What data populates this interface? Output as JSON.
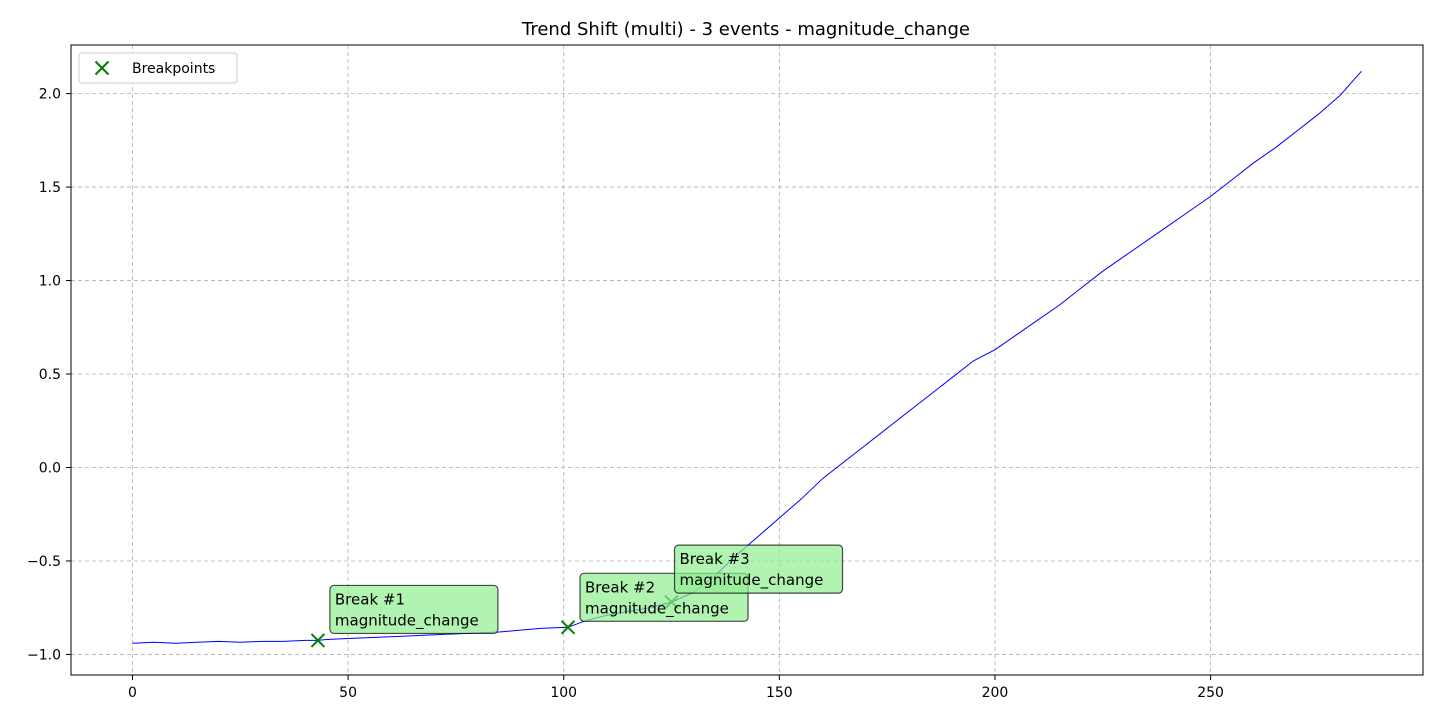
{
  "chart_data": {
    "type": "line",
    "title": "Trend Shift (multi) - 3 events - magnitude_change",
    "xlabel": "",
    "ylabel": "",
    "xlim": [
      -14.25,
      299.25
    ],
    "ylim": [
      -1.11,
      2.26
    ],
    "xticks": [
      0,
      50,
      100,
      150,
      200,
      250
    ],
    "yticks": [
      -1.0,
      -0.5,
      0.0,
      0.5,
      1.0,
      1.5,
      2.0
    ],
    "xtick_labels": [
      "0",
      "50",
      "100",
      "150",
      "200",
      "250"
    ],
    "ytick_labels": [
      "−1.0",
      "−0.5",
      "0.0",
      "0.5",
      "1.0",
      "1.5",
      "2.0"
    ],
    "grid": true,
    "legend_position": "upper-left",
    "colors": {
      "line": "#0000ff",
      "marker": "#008000",
      "annotation_fill": "#90ee90"
    },
    "series": [
      {
        "name": "",
        "x": [
          0,
          5,
          10,
          15,
          20,
          25,
          30,
          35,
          40,
          43,
          45,
          50,
          55,
          60,
          65,
          70,
          75,
          80,
          85,
          90,
          95,
          101,
          105,
          110,
          115,
          120,
          125,
          130,
          135,
          140,
          145,
          150,
          155,
          160,
          165,
          170,
          175,
          180,
          185,
          190,
          195,
          200,
          205,
          210,
          215,
          220,
          225,
          230,
          235,
          240,
          245,
          250,
          255,
          260,
          265,
          270,
          275,
          280,
          285
        ],
        "y": [
          -0.94,
          -0.935,
          -0.94,
          -0.935,
          -0.93,
          -0.935,
          -0.93,
          -0.93,
          -0.925,
          -0.925,
          -0.92,
          -0.915,
          -0.91,
          -0.905,
          -0.9,
          -0.895,
          -0.89,
          -0.885,
          -0.88,
          -0.87,
          -0.86,
          -0.855,
          -0.82,
          -0.79,
          -0.77,
          -0.75,
          -0.72,
          -0.67,
          -0.58,
          -0.47,
          -0.37,
          -0.27,
          -0.17,
          -0.06,
          0.03,
          0.12,
          0.21,
          0.3,
          0.39,
          0.48,
          0.57,
          0.63,
          0.71,
          0.79,
          0.87,
          0.96,
          1.05,
          1.13,
          1.21,
          1.29,
          1.37,
          1.45,
          1.54,
          1.63,
          1.71,
          1.8,
          1.89,
          1.99,
          2.12
        ]
      }
    ],
    "breakpoints": {
      "label": "Breakpoints",
      "points": [
        {
          "x": 43,
          "y": -0.925
        },
        {
          "x": 101,
          "y": -0.855
        },
        {
          "x": 125,
          "y": -0.72
        }
      ]
    },
    "annotations": [
      {
        "line1": "Break #1",
        "line2": "magnitude_change"
      },
      {
        "line1": "Break #2",
        "line2": "magnitude_change"
      },
      {
        "line1": "Break #3",
        "line2": "magnitude_change"
      }
    ]
  }
}
